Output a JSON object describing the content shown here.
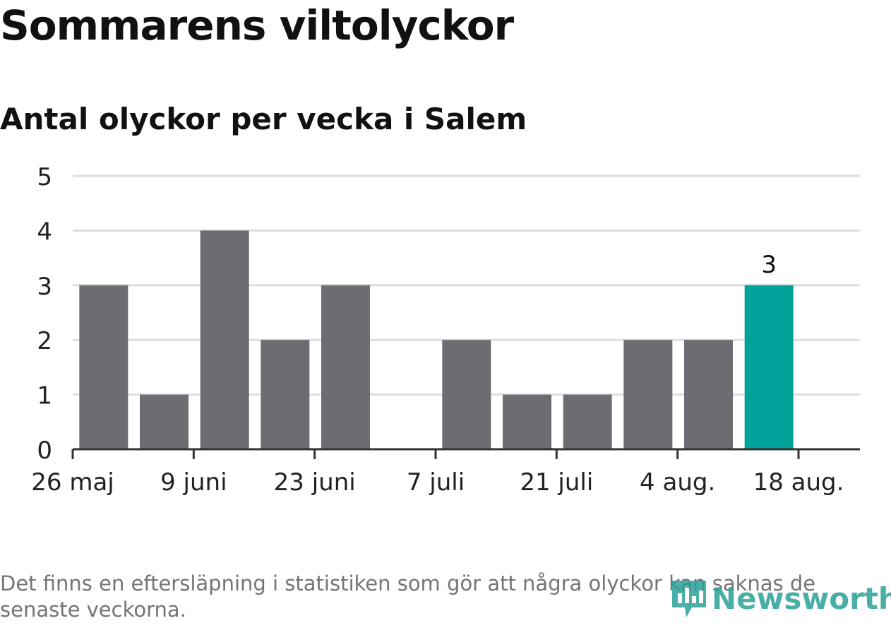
{
  "header": {
    "title": "Sommarens viltolyckor",
    "subtitle": "Antal olyckor per vecka i Salem"
  },
  "footer": {
    "note": "Det finns en eftersläpning i statistiken som gör att några olyckor kan saknas de senaste veckorna.",
    "brand": "Newsworthy"
  },
  "colors": {
    "bar": "#6d6c72",
    "highlight": "#00a298",
    "grid": "#dddddd",
    "axis": "#333333",
    "brand": "#2aa197"
  },
  "chart_data": {
    "type": "bar",
    "x_tick_labels": [
      "26 maj",
      "9 juni",
      "23 juni",
      "7 juli",
      "21 juli",
      "4 aug.",
      "18 aug."
    ],
    "values": [
      3,
      1,
      4,
      2,
      3,
      0,
      2,
      1,
      1,
      2,
      2,
      3
    ],
    "highlight_index": 11,
    "highlight_label": "3",
    "ylim": [
      0,
      5
    ],
    "yticks": [
      0,
      1,
      2,
      3,
      4,
      5
    ],
    "grid": true,
    "xlabel": "",
    "ylabel": ""
  }
}
